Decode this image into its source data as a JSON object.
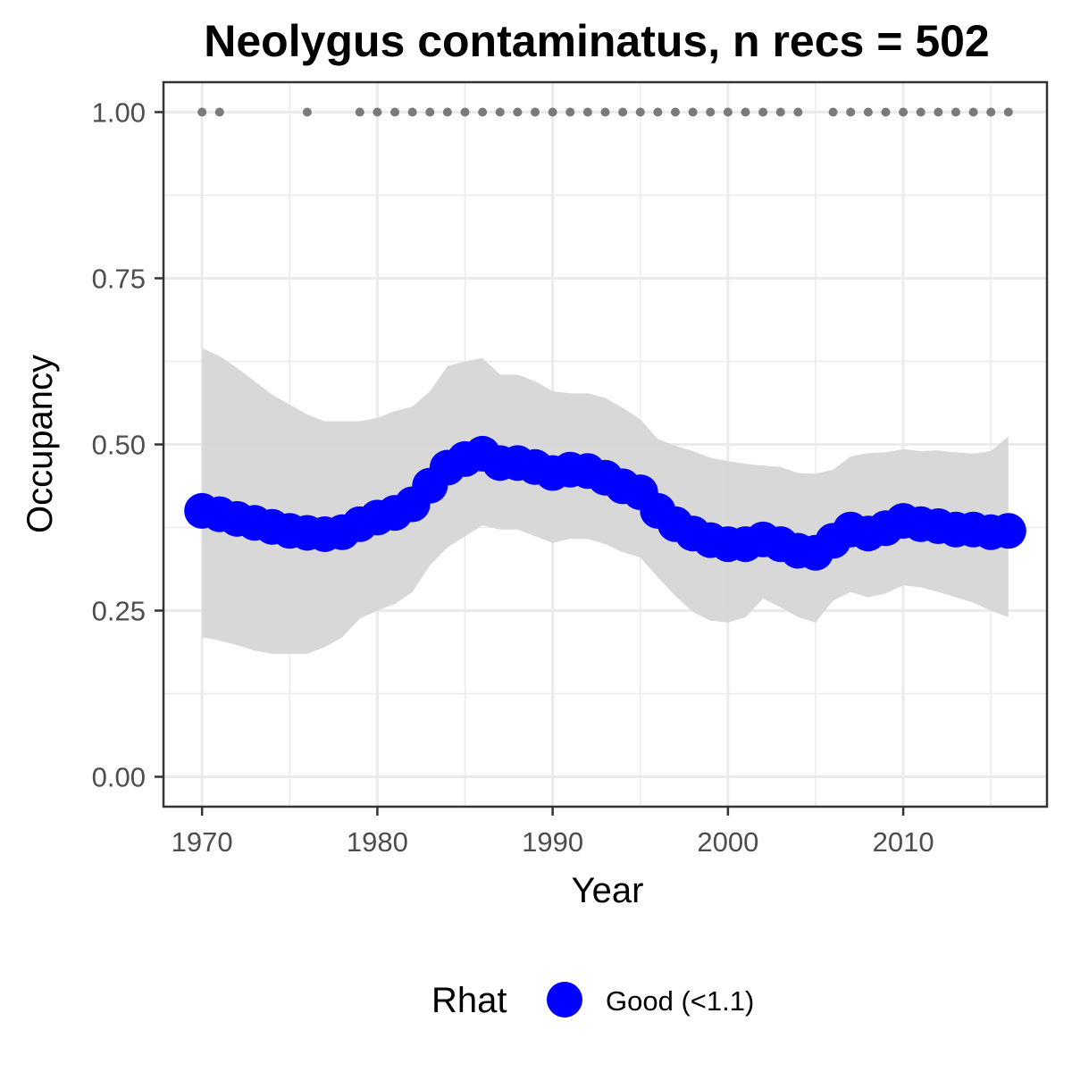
{
  "chart_data": {
    "type": "line",
    "title": "Neolygus contaminatus, n recs = 502",
    "xlabel": "Year",
    "ylabel": "Occupancy",
    "xlim": [
      1967.8,
      2018.2
    ],
    "ylim": [
      -0.045,
      1.045
    ],
    "x_ticks": [
      1970,
      1980,
      1990,
      2000,
      2010
    ],
    "x_tick_labels": [
      "1970",
      "1980",
      "1990",
      "2000",
      "2010"
    ],
    "y_ticks": [
      0,
      0.25,
      0.5,
      0.75,
      1
    ],
    "y_tick_labels": [
      "0.00",
      "0.25",
      "0.50",
      "0.75",
      "1.00"
    ],
    "grid": true,
    "legend": {
      "title": "Rhat",
      "position": "bottom",
      "entries": [
        {
          "label": "Good (<1.1)",
          "color": "#0000ff"
        }
      ]
    },
    "colors": {
      "series": "#0000ff",
      "ribbon": "#d6d6d6",
      "records": "#7a7a7a",
      "grid": "#ebebeb",
      "axis": "#333333"
    },
    "series": [
      {
        "x": [
          1970,
          1971,
          1972,
          1973,
          1974,
          1975,
          1976,
          1977,
          1978,
          1979,
          1980,
          1981,
          1982,
          1983,
          1984,
          1985,
          1986,
          1987,
          1988,
          1989,
          1990,
          1991,
          1992,
          1993,
          1994,
          1995,
          1996,
          1997,
          1998,
          1999,
          2000,
          2001,
          2002,
          2003,
          2004,
          2005,
          2006,
          2007,
          2008,
          2009,
          2010,
          2011,
          2012,
          2013,
          2014,
          2015,
          2016
        ],
        "y": [
          0.4,
          0.395,
          0.388,
          0.382,
          0.376,
          0.37,
          0.367,
          0.365,
          0.368,
          0.38,
          0.39,
          0.397,
          0.41,
          0.438,
          0.465,
          0.478,
          0.486,
          0.472,
          0.472,
          0.466,
          0.457,
          0.462,
          0.46,
          0.45,
          0.437,
          0.428,
          0.4,
          0.38,
          0.366,
          0.356,
          0.35,
          0.35,
          0.357,
          0.35,
          0.34,
          0.337,
          0.355,
          0.372,
          0.366,
          0.374,
          0.385,
          0.38,
          0.377,
          0.372,
          0.372,
          0.368,
          0.37
        ],
        "lower": [
          0.21,
          0.205,
          0.198,
          0.19,
          0.185,
          0.185,
          0.185,
          0.195,
          0.21,
          0.238,
          0.25,
          0.26,
          0.278,
          0.318,
          0.345,
          0.362,
          0.378,
          0.372,
          0.372,
          0.362,
          0.352,
          0.358,
          0.358,
          0.35,
          0.338,
          0.33,
          0.3,
          0.272,
          0.248,
          0.235,
          0.232,
          0.24,
          0.268,
          0.255,
          0.24,
          0.232,
          0.265,
          0.278,
          0.27,
          0.276,
          0.288,
          0.285,
          0.278,
          0.27,
          0.262,
          0.25,
          0.24
        ],
        "upper": [
          0.645,
          0.633,
          0.615,
          0.595,
          0.575,
          0.56,
          0.545,
          0.535,
          0.535,
          0.535,
          0.54,
          0.55,
          0.557,
          0.58,
          0.618,
          0.625,
          0.63,
          0.605,
          0.605,
          0.595,
          0.58,
          0.577,
          0.577,
          0.57,
          0.555,
          0.538,
          0.508,
          0.498,
          0.49,
          0.48,
          0.475,
          0.471,
          0.468,
          0.466,
          0.457,
          0.456,
          0.462,
          0.482,
          0.487,
          0.488,
          0.493,
          0.49,
          0.491,
          0.488,
          0.486,
          0.49,
          0.512
        ]
      }
    ],
    "records": {
      "y": 1.0,
      "x": [
        1970,
        1971,
        1976,
        1979,
        1980,
        1981,
        1982,
        1983,
        1984,
        1985,
        1986,
        1987,
        1988,
        1989,
        1990,
        1991,
        1992,
        1993,
        1994,
        1995,
        1996,
        1997,
        1998,
        1999,
        2000,
        2001,
        2002,
        2003,
        2004,
        2006,
        2007,
        2008,
        2009,
        2010,
        2011,
        2012,
        2013,
        2014,
        2015,
        2016
      ]
    }
  }
}
